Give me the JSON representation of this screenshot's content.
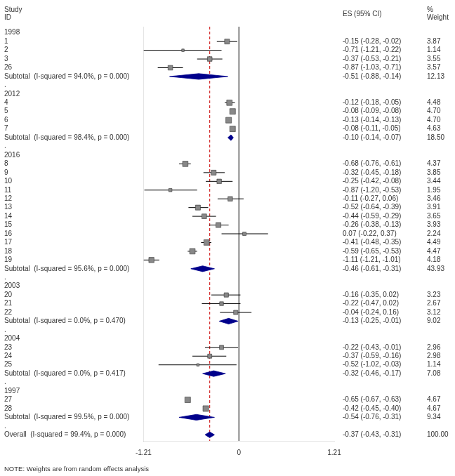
{
  "chart_data": {
    "type": "forest",
    "column_headers": [
      "Study\nID",
      "ES (95% CI)",
      "%\nWeight"
    ],
    "categories": [
      "1998",
      "1",
      "2",
      "3",
      "26",
      "Subtotal  (I-squared = 94.0%, p = 0.000)",
      ".",
      "2012",
      "4",
      "5",
      "6",
      "7",
      "Subtotal  (I-squared = 98.4%, p = 0.000)",
      ".",
      "2016",
      "8",
      "9",
      "10",
      "11",
      "12",
      "13",
      "14",
      "15",
      "16",
      "17",
      "18",
      "19",
      "Subtotal  (I-squared = 95.6%, p = 0.000)",
      ".",
      "2003",
      "20",
      "21",
      "22",
      "Subtotal  (I-squared = 0.0%, p = 0.470)",
      ".",
      "2004",
      "23",
      "24",
      "25",
      "Subtotal  (I-squared = 0.0%, p = 0.417)",
      ".",
      "1997",
      "27",
      "28",
      "Subtotal  (I-squared = 99.5%, p = 0.000)",
      ".",
      "Overall  (I-squared = 99.4%, p = 0.000)"
    ],
    "xlim": [
      -1.21,
      1.21
    ],
    "xticks": [
      -1.21,
      0,
      1.21
    ],
    "grid": false,
    "reference_lines": [
      {
        "value": 0,
        "color": "#000000",
        "line_style": "solid"
      },
      {
        "value": -0.37,
        "color": "#cc0000",
        "line_style": "dashed"
      }
    ],
    "series": [
      {
        "marker": "square",
        "color": "#888888",
        "values": [
          null,
          -0.15,
          -0.71,
          -0.37,
          -0.87,
          null,
          null,
          null,
          -0.12,
          -0.08,
          -0.13,
          -0.08,
          null,
          null,
          null,
          -0.68,
          -0.32,
          -0.25,
          -0.87,
          -0.11,
          -0.52,
          -0.44,
          -0.26,
          0.07,
          -0.41,
          -0.59,
          -1.11,
          null,
          null,
          null,
          -0.16,
          -0.22,
          -0.04,
          null,
          null,
          null,
          -0.22,
          -0.37,
          -0.52,
          null,
          null,
          null,
          -0.65,
          -0.42,
          null,
          null,
          null
        ],
        "ci_lo": [
          null,
          -0.28,
          -1.21,
          -0.53,
          -1.03,
          null,
          null,
          null,
          -0.18,
          -0.09,
          -0.14,
          -0.11,
          null,
          null,
          null,
          -0.76,
          -0.45,
          -0.42,
          -1.2,
          -0.27,
          -0.64,
          -0.59,
          -0.38,
          -0.22,
          -0.48,
          -0.65,
          -1.21,
          null,
          null,
          null,
          -0.35,
          -0.47,
          -0.24,
          null,
          null,
          null,
          -0.43,
          -0.59,
          -1.02,
          null,
          null,
          null,
          -0.67,
          -0.45,
          null,
          null,
          null
        ],
        "ci_hi": [
          null,
          -0.02,
          -0.22,
          -0.21,
          -0.71,
          null,
          null,
          null,
          -0.05,
          -0.08,
          -0.13,
          -0.05,
          null,
          null,
          null,
          -0.61,
          -0.18,
          -0.08,
          -0.53,
          0.06,
          -0.39,
          -0.29,
          -0.13,
          0.37,
          -0.35,
          -0.53,
          -1.01,
          null,
          null,
          null,
          0.02,
          0.02,
          0.16,
          null,
          null,
          null,
          -0.01,
          -0.16,
          -0.03,
          null,
          null,
          null,
          -0.63,
          -0.4,
          null,
          null,
          null
        ],
        "weights": [
          null,
          3.87,
          1.14,
          3.55,
          3.57,
          null,
          null,
          null,
          4.48,
          4.7,
          4.7,
          4.63,
          null,
          null,
          null,
          4.37,
          3.85,
          3.44,
          1.95,
          3.46,
          3.91,
          3.65,
          3.93,
          2.24,
          4.49,
          4.47,
          4.18,
          null,
          null,
          null,
          3.23,
          2.67,
          3.12,
          null,
          null,
          null,
          2.96,
          2.98,
          1.14,
          null,
          null,
          null,
          4.67,
          4.67,
          null,
          null,
          null
        ],
        "value_labels": [
          null,
          "-0.15 (-0.28, -0.02)",
          "-0.71 (-1.21, -0.22)",
          "-0.37 (-0.53, -0.21)",
          "-0.87 (-1.03, -0.71)",
          null,
          null,
          null,
          "-0.12 (-0.18, -0.05)",
          "-0.08 (-0.09, -0.08)",
          "-0.13 (-0.14, -0.13)",
          "-0.08 (-0.11, -0.05)",
          null,
          null,
          null,
          "-0.68 (-0.76, -0.61)",
          "-0.32 (-0.45, -0.18)",
          "-0.25 (-0.42, -0.08)",
          "-0.87 (-1.20, -0.53)",
          "-0.11 (-0.27, 0.06)",
          "-0.52 (-0.64, -0.39)",
          "-0.44 (-0.59, -0.29)",
          "-0.26 (-0.38, -0.13)",
          "0.07 (-0.22, 0.37)",
          "-0.41 (-0.48, -0.35)",
          "-0.59 (-0.65, -0.53)",
          "-1.11 (-1.21, -1.01)",
          null,
          null,
          null,
          "-0.16 (-0.35, 0.02)",
          "-0.22 (-0.47, 0.02)",
          "-0.04 (-0.24, 0.16)",
          null,
          null,
          null,
          "-0.22 (-0.43, -0.01)",
          "-0.37 (-0.59, -0.16)",
          "-0.52 (-1.02, -0.03)",
          null,
          null,
          null,
          "-0.65 (-0.67, -0.63)",
          "-0.42 (-0.45, -0.40)",
          null,
          null,
          null
        ],
        "weight_labels": [
          null,
          "3.87",
          "1.14",
          "3.55",
          "3.57",
          null,
          null,
          null,
          "4.48",
          "4.70",
          "4.70",
          "4.63",
          null,
          null,
          null,
          "4.37",
          "3.85",
          "3.44",
          "1.95",
          "3.46",
          "3.91",
          "3.65",
          "3.93",
          "2.24",
          "4.49",
          "4.47",
          "4.18",
          null,
          null,
          null,
          "3.23",
          "2.67",
          "3.12",
          null,
          null,
          null,
          "2.96",
          "2.98",
          "1.14",
          null,
          null,
          null,
          "4.67",
          "4.67",
          null,
          null,
          null
        ]
      },
      {
        "marker": "diamond",
        "color": "#00008b",
        "values": [
          null,
          null,
          null,
          null,
          null,
          -0.51,
          null,
          null,
          null,
          null,
          null,
          null,
          -0.1,
          null,
          null,
          null,
          null,
          null,
          null,
          null,
          null,
          null,
          null,
          null,
          null,
          null,
          null,
          -0.46,
          null,
          null,
          null,
          null,
          null,
          -0.13,
          null,
          null,
          null,
          null,
          null,
          -0.32,
          null,
          null,
          null,
          null,
          -0.54,
          null,
          -0.37
        ],
        "ci_lo": [
          null,
          null,
          null,
          null,
          null,
          -0.88,
          null,
          null,
          null,
          null,
          null,
          null,
          -0.14,
          null,
          null,
          null,
          null,
          null,
          null,
          null,
          null,
          null,
          null,
          null,
          null,
          null,
          null,
          -0.61,
          null,
          null,
          null,
          null,
          null,
          -0.25,
          null,
          null,
          null,
          null,
          null,
          -0.46,
          null,
          null,
          null,
          null,
          -0.76,
          null,
          -0.43
        ],
        "ci_hi": [
          null,
          null,
          null,
          null,
          null,
          -0.14,
          null,
          null,
          null,
          null,
          null,
          null,
          -0.07,
          null,
          null,
          null,
          null,
          null,
          null,
          null,
          null,
          null,
          null,
          null,
          null,
          null,
          null,
          -0.31,
          null,
          null,
          null,
          null,
          null,
          -0.01,
          null,
          null,
          null,
          null,
          null,
          -0.17,
          null,
          null,
          null,
          null,
          -0.31,
          null,
          -0.31
        ],
        "value_labels": [
          null,
          null,
          null,
          null,
          null,
          "-0.51 (-0.88, -0.14)",
          null,
          null,
          null,
          null,
          null,
          null,
          "-0.10 (-0.14, -0.07)",
          null,
          null,
          null,
          null,
          null,
          null,
          null,
          null,
          null,
          null,
          null,
          null,
          null,
          null,
          "-0.46 (-0.61, -0.31)",
          null,
          null,
          null,
          null,
          null,
          "-0.13 (-0.25, -0.01)",
          null,
          null,
          null,
          null,
          null,
          "-0.32 (-0.46, -0.17)",
          null,
          null,
          null,
          null,
          "-0.54 (-0.76, -0.31)",
          null,
          "-0.37 (-0.43, -0.31)"
        ],
        "weight_labels": [
          null,
          null,
          null,
          null,
          null,
          "12.13",
          null,
          null,
          null,
          null,
          null,
          null,
          "18.50",
          null,
          null,
          null,
          null,
          null,
          null,
          null,
          null,
          null,
          null,
          null,
          null,
          null,
          null,
          "43.93",
          null,
          null,
          null,
          null,
          null,
          "9.02",
          null,
          null,
          null,
          null,
          null,
          "7.08",
          null,
          null,
          null,
          null,
          "9.34",
          null,
          "100.00"
        ]
      }
    ],
    "note": "NOTE: Weights are from random effects analysis"
  }
}
